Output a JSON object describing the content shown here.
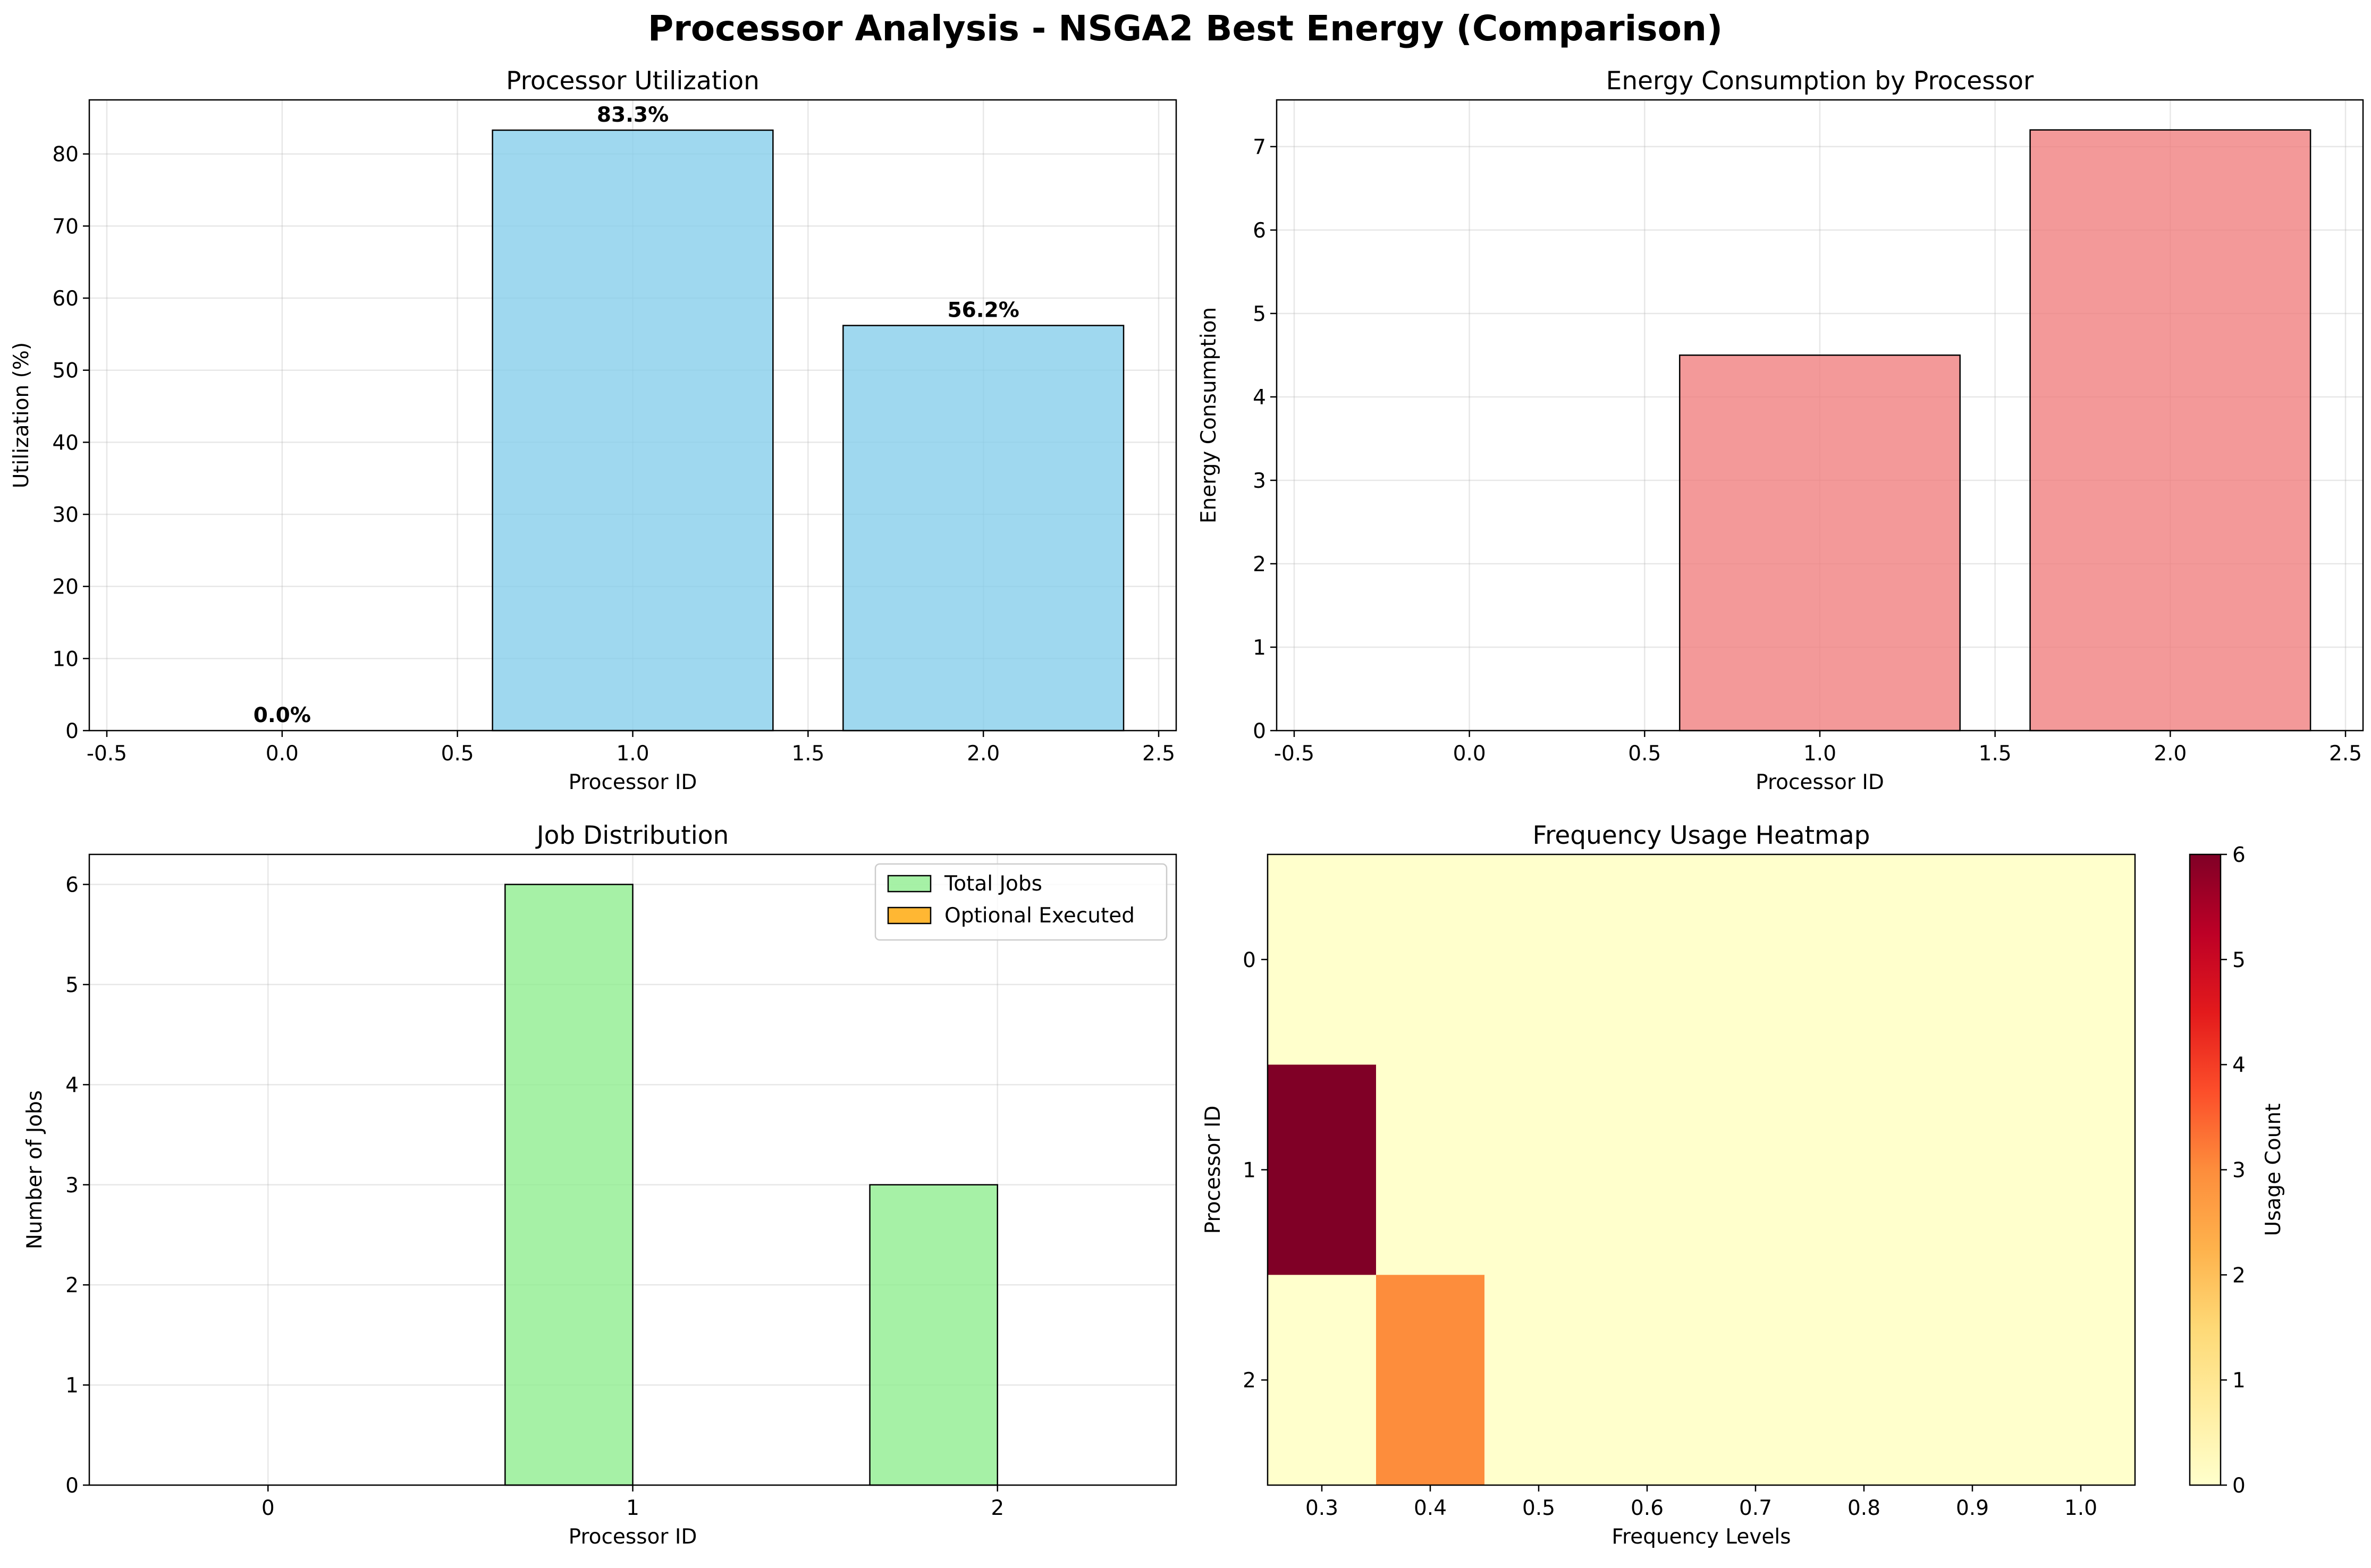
{
  "figure": {
    "title": "Processor Analysis - NSGA2 Best Energy (Comparison)"
  },
  "chart_data": [
    {
      "id": "utilization",
      "type": "bar",
      "title": "Processor Utilization",
      "xlabel": "Processor ID",
      "ylabel": "Utilization (%)",
      "x": [
        0,
        1,
        2
      ],
      "values": [
        0.0,
        83.3,
        56.2
      ],
      "data_labels": [
        "0.0%",
        "83.3%",
        "56.2%"
      ],
      "xlim": [
        -0.55,
        2.55
      ],
      "ylim": [
        0,
        87.5
      ],
      "xticks": [
        -0.5,
        0.0,
        0.5,
        1.0,
        1.5,
        2.0,
        2.5
      ],
      "xtick_labels": [
        "-0.5",
        "0.0",
        "0.5",
        "1.0",
        "1.5",
        "2.0",
        "2.5"
      ],
      "yticks": [
        0,
        10,
        20,
        30,
        40,
        50,
        60,
        70,
        80
      ],
      "ytick_labels": [
        "0",
        "10",
        "20",
        "30",
        "40",
        "50",
        "60",
        "70",
        "80"
      ],
      "grid": true,
      "color": "#87ceeb"
    },
    {
      "id": "energy",
      "type": "bar",
      "title": "Energy Consumption by Processor",
      "xlabel": "Processor ID",
      "ylabel": "Energy Consumption",
      "x": [
        0,
        1,
        2
      ],
      "values": [
        0.0,
        4.5,
        7.2
      ],
      "xlim": [
        -0.55,
        2.55
      ],
      "ylim": [
        0,
        7.56
      ],
      "xticks": [
        -0.5,
        0.0,
        0.5,
        1.0,
        1.5,
        2.0,
        2.5
      ],
      "xtick_labels": [
        "-0.5",
        "0.0",
        "0.5",
        "1.0",
        "1.5",
        "2.0",
        "2.5"
      ],
      "yticks": [
        0,
        1,
        2,
        3,
        4,
        5,
        6,
        7
      ],
      "ytick_labels": [
        "0",
        "1",
        "2",
        "3",
        "4",
        "5",
        "6",
        "7"
      ],
      "grid": true,
      "color": "#f08080"
    },
    {
      "id": "jobs",
      "type": "bar",
      "title": "Job Distribution",
      "xlabel": "Processor ID",
      "ylabel": "Number of Jobs",
      "categories": [
        "0",
        "1",
        "2"
      ],
      "series": [
        {
          "name": "Total Jobs",
          "values": [
            0,
            6,
            3
          ],
          "color": "#90ee90"
        },
        {
          "name": "Optional Executed",
          "values": [
            0,
            0,
            0
          ],
          "color": "#ffa500"
        }
      ],
      "xlim": [
        -0.49,
        2.49
      ],
      "ylim": [
        0,
        6.3
      ],
      "yticks": [
        0,
        1,
        2,
        3,
        4,
        5,
        6
      ],
      "ytick_labels": [
        "0",
        "1",
        "2",
        "3",
        "4",
        "5",
        "6"
      ],
      "legend": "top-right",
      "grid": true
    },
    {
      "id": "freq",
      "type": "heatmap",
      "title": "Frequency Usage Heatmap",
      "xlabel": "Frequency Levels",
      "ylabel": "Processor ID",
      "x_categories": [
        "0.3",
        "0.4",
        "0.5",
        "0.6",
        "0.7",
        "0.8",
        "0.9",
        "1.0"
      ],
      "y_categories": [
        "0",
        "1",
        "2"
      ],
      "values": [
        [
          0,
          0,
          0,
          0,
          0,
          0,
          0,
          0
        ],
        [
          6,
          0,
          0,
          0,
          0,
          0,
          0,
          0
        ],
        [
          0,
          3,
          0,
          0,
          0,
          0,
          0,
          0
        ]
      ],
      "colormap": "YlOrRd",
      "colorbar": {
        "label": "Usage Count",
        "range": [
          0,
          6
        ],
        "ticks": [
          "0",
          "1",
          "2",
          "3",
          "4",
          "5",
          "6"
        ]
      }
    }
  ]
}
